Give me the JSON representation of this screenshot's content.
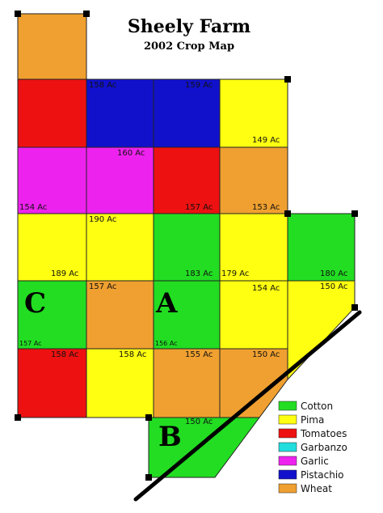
{
  "map": {
    "title": "Sheely Farm",
    "subtitle": "2002 Crop Map"
  },
  "crops": {
    "cotton": {
      "label": "Cotton",
      "color": "#22dd22"
    },
    "pima": {
      "label": "Pima",
      "color": "#ffff11"
    },
    "tomatoes": {
      "label": "Tomatoes",
      "color": "#ee1111"
    },
    "garbanzo": {
      "label": "Garbanzo",
      "color": "#22dddd"
    },
    "garlic": {
      "label": "Garlic",
      "color": "#ee22ee"
    },
    "pistachio": {
      "label": "Pistachio",
      "color": "#1111cc"
    },
    "wheat": {
      "label": "Wheat",
      "color": "#f0a030"
    }
  },
  "legend_order": [
    "cotton",
    "pima",
    "tomatoes",
    "garbanzo",
    "garlic",
    "pistachio",
    "wheat"
  ],
  "fields": [
    {
      "crop": "wheat"
    },
    {
      "crop": "tomatoes"
    },
    {
      "crop": "pistachio",
      "acres": "158 Ac"
    },
    {
      "crop": "pistachio",
      "acres": "159 Ac"
    },
    {
      "crop": "pima",
      "acres": "149 Ac"
    },
    {
      "crop": "garlic",
      "acres": "154 Ac"
    },
    {
      "crop": "garlic",
      "acres": "160 Ac"
    },
    {
      "crop": "tomatoes",
      "acres": "157 Ac"
    },
    {
      "crop": "wheat",
      "acres": "153 Ac"
    },
    {
      "crop": "pima",
      "acres": "189 Ac"
    },
    {
      "crop": "pima",
      "acres": "190 Ac"
    },
    {
      "crop": "cotton",
      "acres": "183 Ac"
    },
    {
      "crop": "pima",
      "acres": "179 Ac"
    },
    {
      "crop": "cotton",
      "acres": "180 Ac"
    },
    {
      "crop": "cotton",
      "acres": "157 Ac"
    },
    {
      "crop": "wheat",
      "acres": "157 Ac"
    },
    {
      "crop": "cotton",
      "acres": "156 Ac"
    },
    {
      "crop": "pima",
      "acres": "154 Ac"
    },
    {
      "crop": "pima",
      "acres": "150 Ac"
    },
    {
      "crop": "tomatoes",
      "acres": "158 Ac"
    },
    {
      "crop": "pima",
      "acres": "158 Ac"
    },
    {
      "crop": "wheat",
      "acres": "155 Ac"
    },
    {
      "crop": "wheat",
      "acres": "150 Ac"
    },
    {
      "crop": "cotton",
      "acres": "150 Ac"
    }
  ],
  "section_labels": [
    "C",
    "A",
    "B"
  ]
}
